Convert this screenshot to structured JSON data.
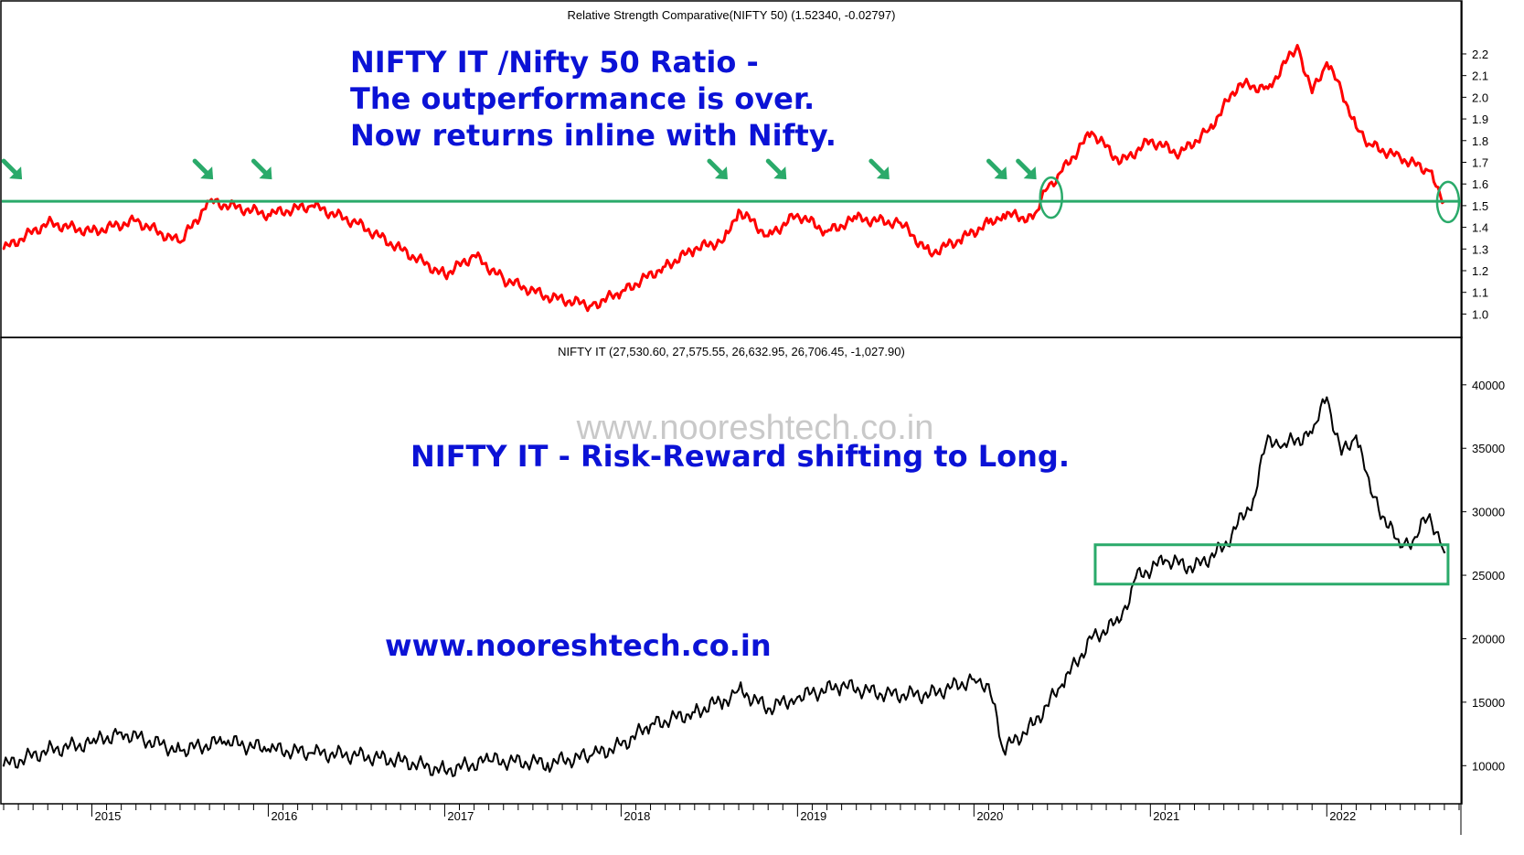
{
  "chart_data": [
    {
      "type": "line",
      "title": "Relative Strength Comparative(NIFTY 50) (1.52340, -0.02797)",
      "series": [
        {
          "x": [
            "2014-07",
            "2014-10",
            "2015-01",
            "2015-04",
            "2015-07",
            "2015-09",
            "2016-01",
            "2016-04",
            "2016-07",
            "2016-10",
            "2017-01",
            "2017-03",
            "2017-05",
            "2017-08",
            "2017-11",
            "2018-01",
            "2018-04",
            "2018-06",
            "2018-08",
            "2018-09",
            "2018-11",
            "2019-01",
            "2019-03",
            "2019-05",
            "2019-08",
            "2019-10",
            "2019-12",
            "2020-02",
            "2020-03",
            "2020-05",
            "2020-06",
            "2020-07",
            "2020-09",
            "2020-11",
            "2021-01",
            "2021-03",
            "2021-05",
            "2021-07",
            "2021-09",
            "2021-11",
            "2021-12",
            "2022-01",
            "2022-02",
            "2022-03",
            "2022-04",
            "2022-06",
            "2022-08",
            "2022-09"
          ],
          "values": [
            1.3,
            1.42,
            1.38,
            1.43,
            1.33,
            1.52,
            1.46,
            1.5,
            1.42,
            1.3,
            1.18,
            1.27,
            1.16,
            1.08,
            1.04,
            1.1,
            1.22,
            1.3,
            1.34,
            1.48,
            1.36,
            1.46,
            1.38,
            1.44,
            1.42,
            1.28,
            1.34,
            1.42,
            1.46,
            1.44,
            1.58,
            1.66,
            1.84,
            1.7,
            1.8,
            1.74,
            1.85,
            2.06,
            2.04,
            2.24,
            2.02,
            2.16,
            2.03,
            1.86,
            1.78,
            1.72,
            1.66,
            1.52
          ]
        }
      ],
      "ylim": [
        0.93,
        2.28
      ],
      "yticks": [
        "1.0",
        "1.1",
        "1.2",
        "1.3",
        "1.4",
        "1.5",
        "1.6",
        "1.7",
        "1.8",
        "1.9",
        "2.0",
        "2.1",
        "2.2"
      ],
      "line_color": "#ff0000",
      "reference_line": {
        "value": 1.52,
        "color": "#2aaa6a"
      },
      "arrow_markers": [
        "2014-08",
        "2015-09",
        "2016-01",
        "2018-08",
        "2018-12",
        "2019-07",
        "2020-03",
        "2020-05"
      ],
      "circle_markers": [
        {
          "x": "2020-06",
          "y": 1.52
        },
        {
          "x": "2022-09",
          "y": 1.5
        }
      ],
      "annotation": {
        "lines": [
          "NIFTY IT /Nifty 50 Ratio -",
          "The outperformance is over.",
          "Now returns inline with Nifty."
        ]
      }
    },
    {
      "type": "line",
      "title": "NIFTY IT (27,530.60, 27,575.55, 26,632.95, 26,706.45, -1,027.90)",
      "series": [
        {
          "x": [
            "2014-07",
            "2014-10",
            "2015-01",
            "2015-03",
            "2015-07",
            "2015-10",
            "2016-01",
            "2016-04",
            "2016-07",
            "2016-10",
            "2017-01",
            "2017-04",
            "2017-08",
            "2017-11",
            "2018-01",
            "2018-03",
            "2018-06",
            "2018-08",
            "2018-09",
            "2018-11",
            "2019-01",
            "2019-04",
            "2019-07",
            "2019-10",
            "2020-01",
            "2020-02",
            "2020-03",
            "2020-05",
            "2020-07",
            "2020-09",
            "2020-11",
            "2020-12",
            "2021-02",
            "2021-04",
            "2021-06",
            "2021-08",
            "2021-09",
            "2021-10",
            "2021-12",
            "2022-01",
            "2022-02",
            "2022-03",
            "2022-04",
            "2022-06",
            "2022-07",
            "2022-08",
            "2022-09"
          ],
          "values": [
            10000,
            11200,
            11800,
            12600,
            11200,
            11900,
            11300,
            11000,
            10800,
            10400,
            9600,
            10400,
            10200,
            10800,
            11600,
            13200,
            14200,
            15200,
            16000,
            14500,
            15400,
            16300,
            15600,
            15600,
            16800,
            16400,
            11200,
            13200,
            16400,
            20000,
            21500,
            24800,
            26200,
            25600,
            27200,
            31000,
            36000,
            35200,
            36200,
            39000,
            34500,
            36000,
            31500,
            27200,
            28000,
            29800,
            26800
          ]
        }
      ],
      "ylim": [
        7500,
        41500
      ],
      "yticks": [
        "10000",
        "15000",
        "20000",
        "25000",
        "30000",
        "35000",
        "40000"
      ],
      "line_color": "#000000",
      "box": {
        "x_from": "2020-09",
        "x_to": "2022-09",
        "y_from": 24300,
        "y_to": 27400,
        "color": "#2aaa6a"
      },
      "annotation": {
        "lines": [
          "NIFTY IT - Risk-Reward shifting to Long."
        ],
        "website": "www.nooreshtech.co.in",
        "watermark": "www.nooreshtech.co.in"
      }
    }
  ],
  "x_axis": {
    "labels": [
      "2015",
      "2016",
      "2017",
      "2018",
      "2019",
      "2020",
      "2021",
      "2022"
    ],
    "start": "2014-07",
    "end": "2022-09"
  }
}
